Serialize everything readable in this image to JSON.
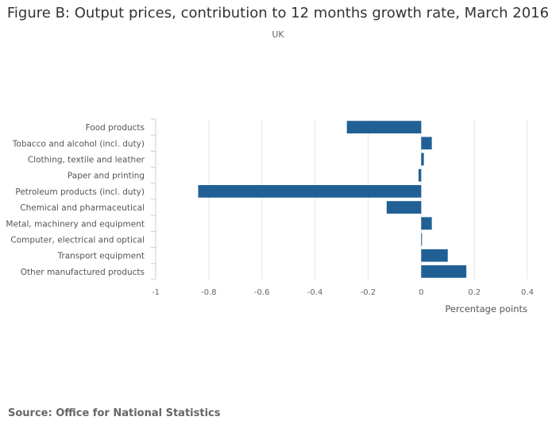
{
  "header": {
    "title": "Figure B: Output prices, contribution to 12 months growth rate, March 2016",
    "subtitle": "UK"
  },
  "footer": {
    "source": "Source: Office for National Statistics"
  },
  "colors": {
    "bar": "#206095",
    "grid": "#e6e6e6",
    "axis": "#cccccc"
  },
  "chart_data": {
    "type": "bar",
    "orientation": "horizontal",
    "categories": [
      "Food products",
      "Tobacco and alcohol (incl. duty)",
      "Clothing, textile and leather",
      "Paper and printing",
      "Petroleum products (incl. duty)",
      "Chemical and pharmaceutical",
      "Metal, machinery and equipment",
      "Computer, electrical and optical",
      "Transport equipment",
      "Other manufactured products"
    ],
    "values": [
      -0.28,
      0.04,
      0.01,
      -0.01,
      -0.84,
      -0.13,
      0.04,
      0.0,
      0.1,
      0.17
    ],
    "xlabel": "Percentage points",
    "ylabel": "",
    "xlim": [
      -1,
      0.4
    ],
    "xticks": [
      "-1",
      "-0.8",
      "-0.6",
      "-0.4",
      "-0.2",
      "0",
      "0.2",
      "0.4"
    ],
    "tick_values": [
      -1,
      -0.8,
      -0.6,
      -0.4,
      -0.2,
      0,
      0.2,
      0.4
    ],
    "grid": true
  }
}
